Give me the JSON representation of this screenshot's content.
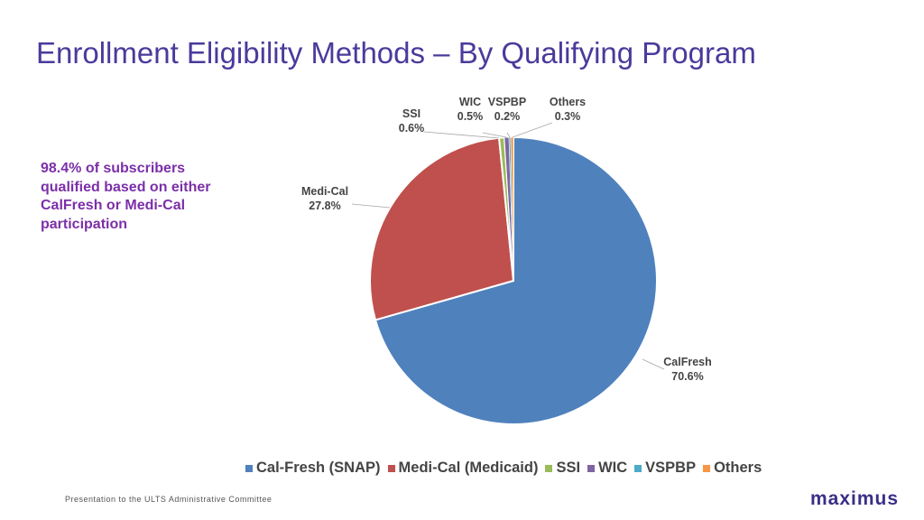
{
  "slide": {
    "title": "Enrollment Eligibility Methods – By Qualifying Program",
    "callout": "98.4% of subscribers qualified based on either CalFresh or Medi-Cal participation",
    "footer": "Presentation to the ULTS Administrative Committee",
    "logo": "maximus"
  },
  "chart_data": {
    "type": "pie",
    "title": "",
    "legend_position": "bottom",
    "slices": [
      {
        "legend": "Cal-Fresh (SNAP)",
        "label": "CalFresh",
        "value": 70.6,
        "value_label": "70.6%",
        "color": "#4f81bd"
      },
      {
        "legend": "Medi-Cal (Medicaid)",
        "label": "Medi-Cal",
        "value": 27.8,
        "value_label": "27.8%",
        "color": "#c0504d"
      },
      {
        "legend": "SSI",
        "label": "SSI",
        "value": 0.6,
        "value_label": "0.6%",
        "color": "#9bbb59"
      },
      {
        "legend": "WIC",
        "label": "WIC",
        "value": 0.5,
        "value_label": "0.5%",
        "color": "#8064a2"
      },
      {
        "legend": "VSPBP",
        "label": "VSPBP",
        "value": 0.2,
        "value_label": "0.2%",
        "color": "#4bacc6"
      },
      {
        "legend": "Others",
        "label": "Others",
        "value": 0.3,
        "value_label": "0.3%",
        "color": "#f79646"
      }
    ]
  }
}
